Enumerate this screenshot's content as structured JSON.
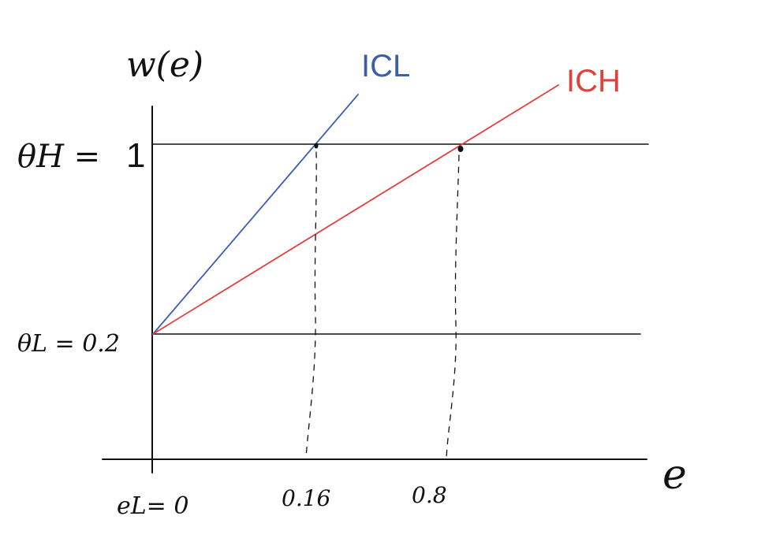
{
  "diagram": {
    "y_axis_label": "w(e)",
    "x_axis_label": "e",
    "theta_h_label": "θH =",
    "theta_h_value": "1",
    "theta_l_label": "θL = 0.2",
    "origin_label": "eL= 0",
    "tick_1_label": "0.16",
    "tick_2_label": "0.8",
    "ic_low_label": "ICL",
    "ic_high_label": "ICH"
  },
  "colors": {
    "ic_low": "#3a5fb0",
    "ic_high": "#e2403a",
    "axes": "#111111"
  }
}
